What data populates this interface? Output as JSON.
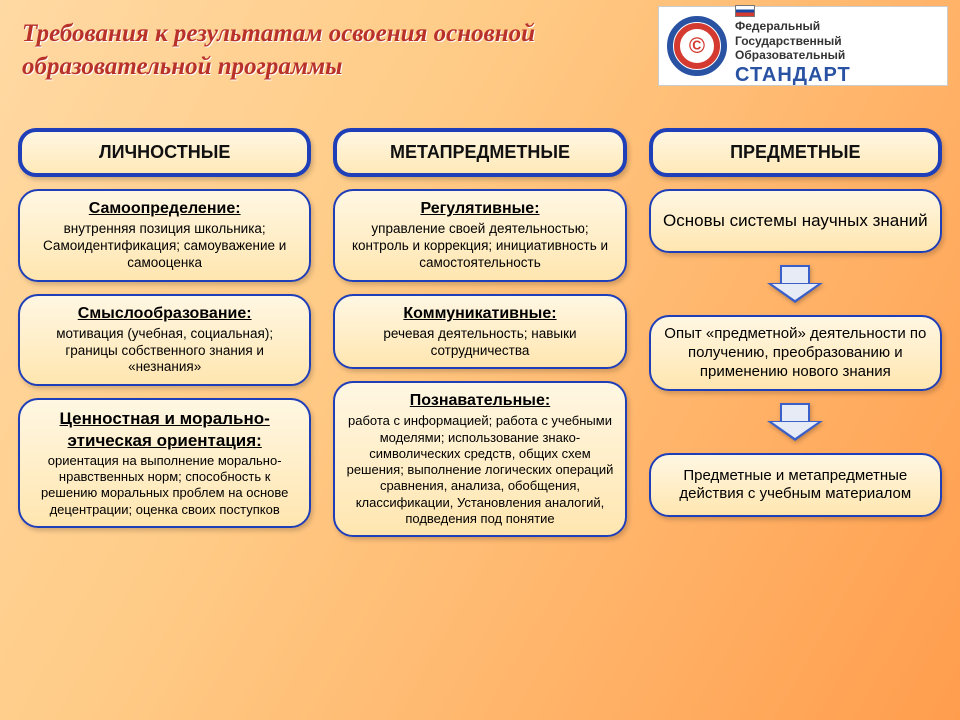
{
  "title": "Требования к результатам освоения основной образовательной программы",
  "logo": {
    "line1": "Федеральный",
    "line2": "Государственный",
    "line3": "Образовательный",
    "big": "СТАНДАРТ",
    "mark": "©"
  },
  "headers": {
    "c1": "ЛИЧНОСТНЫЕ",
    "c2": "МЕТАПРЕДМЕТНЫЕ",
    "c3": "ПРЕДМЕТНЫЕ"
  },
  "col1": {
    "b1h": "Самоопределение:",
    "b1t": "внутренняя позиция школьника; Самоидентификация; самоуважение и самооценка",
    "b2h": "Смыслообразование:",
    "b2t": "мотивация (учебная, социальная); границы собственного знания и «незнания»",
    "b3h": "Ценностная и морально-этическая ориентация:",
    "b3t": "ориентация на выполнение морально-нравственных норм; способность к решению моральных проблем на основе децентрации; оценка своих поступков"
  },
  "col2": {
    "b1h": "Регулятивные:",
    "b1t": "управление своей деятельностью; контроль и коррекция; инициативность и самостоятельность",
    "b2h": "Коммуникативные:",
    "b2t": "речевая деятельность; навыки сотрудничества",
    "b3h": "Познавательные:",
    "b3t": "работа с информацией; работа с учебными моделями; использование знако-символических средств, общих схем решения; выполнение логических операций сравнения, анализа, обобщения, классификации, Установления аналогий, подведения под понятие"
  },
  "col3": {
    "b1": "Основы системы научных знаний",
    "b2": "Опыт «предметной» деятельности по получению, преобразованию и применению нового знания",
    "b3": "Предметные и метапредметные действия с учебным материалом"
  },
  "style": {
    "border_color": "#1f3fb8",
    "title_color": "#b8322b",
    "bg_gradient": [
      "#ffd9a3",
      "#ff9d4d"
    ],
    "box_gradient": [
      "#fff7e3",
      "#ffe6b0"
    ],
    "arrow_fill": "#e6ebf5"
  }
}
